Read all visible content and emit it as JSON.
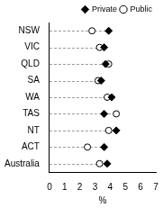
{
  "chart_data": {
    "type": "dot",
    "x_label": "%",
    "categories": [
      "NSW",
      "VIC",
      "QLD",
      "SA",
      "WA",
      "TAS",
      "NT",
      "ACT",
      "Australia"
    ],
    "series": [
      {
        "name": "Private",
        "color": "#000000",
        "marker": "diamond",
        "values": [
          3.9,
          3.6,
          3.7,
          3.4,
          4.1,
          3.6,
          4.4,
          3.6,
          3.8
        ]
      },
      {
        "name": "Public",
        "color": "#000000",
        "marker": "circle_open",
        "values": [
          2.8,
          3.3,
          3.9,
          3.2,
          3.8,
          4.4,
          3.9,
          2.5,
          3.3
        ]
      }
    ],
    "xlim": [
      0,
      7
    ],
    "xticks": [
      0,
      1,
      2,
      3,
      4,
      5,
      6,
      7
    ],
    "grid": false,
    "legend": "top-right"
  }
}
